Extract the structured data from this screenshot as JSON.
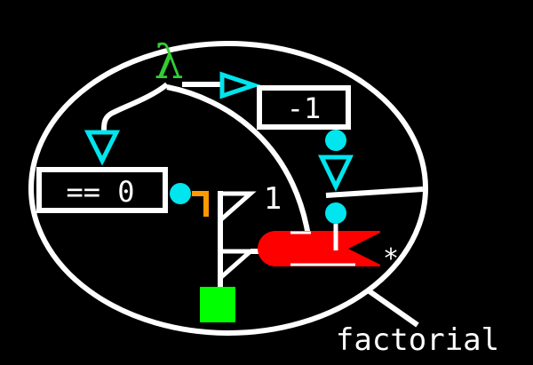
{
  "diagram": {
    "function_name": "factorial",
    "lambda_symbol": "λ",
    "decrement_label": "-1",
    "zero_test_label": "== 0",
    "base_value_label": "1",
    "multiply_label": "*"
  },
  "colors": {
    "background": "#000000",
    "wire": "#ffffff",
    "lambda": "#33cc33",
    "port": "#00e5ee",
    "multiplier": "#ff0000",
    "result": "#00ff00",
    "orange_link": "#ff9900"
  }
}
